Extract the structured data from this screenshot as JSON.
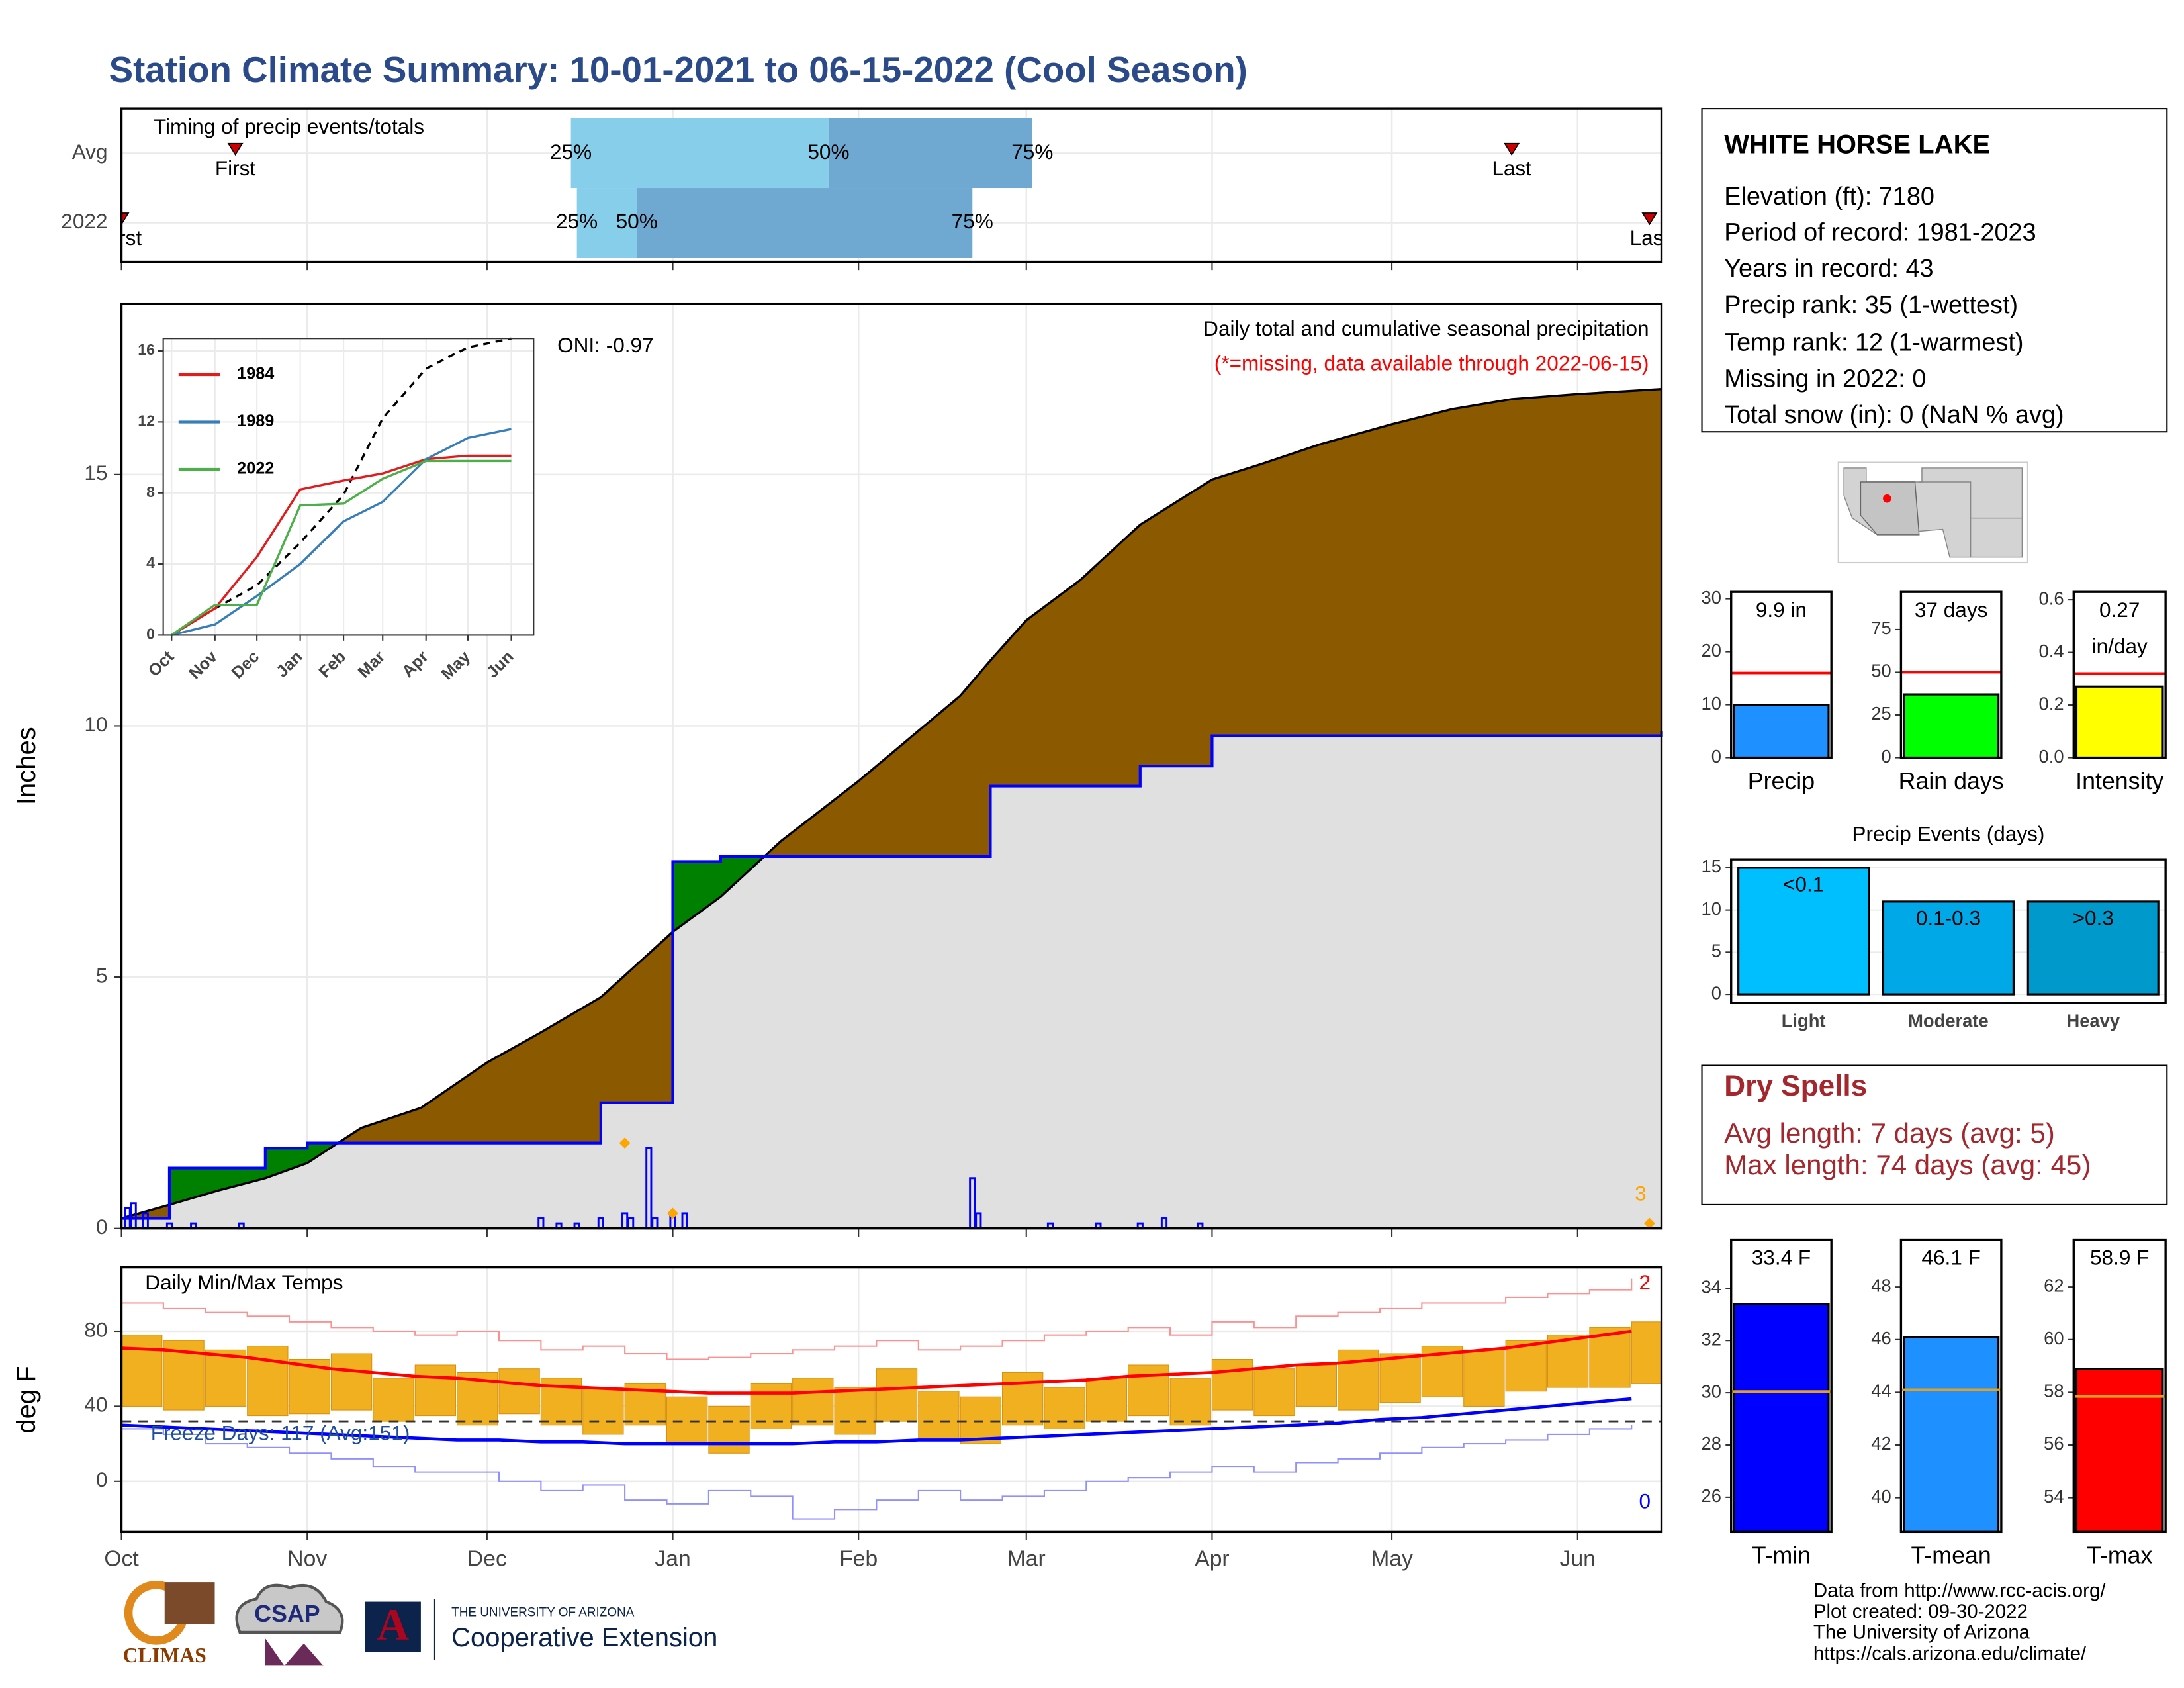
{
  "title": "Station Climate Summary: 10-01-2021 to 06-15-2022 (Cool Season)",
  "station": {
    "name": "WHITE HORSE LAKE",
    "lines": [
      "Elevation (ft): 7180",
      "Period of record: 1981-2023",
      "Years in record: 43",
      "Precip rank: 35 (1-wettest)",
      "Temp rank: 12 (1-warmest)",
      "Missing in 2022: 0",
      "Total snow (in): 0 (NaN % avg)"
    ]
  },
  "dry_spells": {
    "title": "Dry Spells",
    "lines": [
      "Avg length: 7 days (avg: 5)",
      "Max length: 74 days (avg: 45)"
    ]
  },
  "credits": [
    "Data from http://www.rcc-acis.org/",
    "Plot created: 09-30-2022",
    "The University of Arizona",
    "https://cals.arizona.edu/climate/"
  ],
  "logos": {
    "climas": "CLIMAS",
    "csap": "CSAP",
    "ua_mark": "A",
    "ua_name": "THE UNIVERSITY OF ARIZONA",
    "unit": "Cooperative Extension"
  },
  "chart_data": [
    {
      "type": "timing",
      "label": "Timing of precip events/totals",
      "categories": [
        "Avg",
        "2022"
      ],
      "markers": [
        "First",
        "25%",
        "50%",
        "75%",
        "Last"
      ],
      "values": [
        [
          19,
          75,
          118,
          152,
          232
        ],
        [
          0,
          76,
          86,
          142,
          255
        ]
      ],
      "colors": [
        "#87ceeb",
        "#6fa8d1"
      ],
      "marker_color": "#cc0000",
      "xlim": [
        0,
        257
      ],
      "xticks": [
        0,
        31,
        61,
        92,
        123,
        151,
        182,
        212,
        243
      ]
    },
    {
      "type": "cumulative",
      "title": "Daily total and cumulative seasonal precipitation",
      "subtitle": "(*=missing, data available through 2022-06-15)",
      "annotation": "ONI: -0.97",
      "count_label": "3",
      "ylabel": "Inches",
      "x": [
        0,
        8,
        16,
        24,
        31,
        40,
        50,
        61,
        70,
        80,
        92,
        100,
        110,
        123,
        130,
        140,
        145,
        151,
        160,
        170,
        182,
        190,
        200,
        212,
        222,
        232,
        243,
        257
      ],
      "series": [
        {
          "color": "#000000",
          "fill": "#8b5a00",
          "values": [
            0.2,
            0.47,
            0.75,
            1.0,
            1.3,
            2.0,
            2.4,
            3.3,
            3.9,
            4.6,
            5.9,
            6.6,
            7.7,
            8.9,
            9.6,
            10.6,
            11.3,
            12.1,
            12.9,
            14.0,
            14.9,
            15.2,
            15.6,
            16.0,
            16.3,
            16.5,
            16.6,
            16.7
          ]
        },
        {
          "color": "#0000ff",
          "fill": "#e0e0e0",
          "values": [
            0.2,
            1.2,
            1.2,
            1.6,
            1.7,
            1.7,
            1.7,
            1.7,
            1.7,
            2.5,
            7.3,
            7.4,
            7.4,
            7.4,
            7.4,
            7.4,
            8.8,
            8.8,
            8.8,
            9.2,
            9.8,
            9.8,
            9.8,
            9.8,
            9.8,
            9.8,
            9.8,
            9.9
          ]
        }
      ],
      "above_fill": "#008000",
      "daily": {
        "color": "#0000ff",
        "x": [
          1,
          2,
          4,
          8,
          12,
          20,
          70,
          73,
          76,
          80,
          84,
          85,
          88,
          89,
          92,
          94,
          142,
          143,
          155,
          163,
          170,
          174,
          180
        ],
        "values": [
          0.4,
          0.5,
          0.3,
          0.1,
          0.1,
          0.1,
          0.2,
          0.1,
          0.1,
          0.2,
          0.3,
          0.2,
          1.6,
          0.2,
          0.3,
          0.3,
          1.0,
          0.3,
          0.1,
          0.1,
          0.1,
          0.2,
          0.1
        ]
      },
      "flags": {
        "color": "#ffa500",
        "x": [
          84,
          92,
          255
        ],
        "values": [
          1.7,
          0.3,
          0.1
        ]
      },
      "xlim": [
        0,
        257
      ],
      "ylim": [
        0,
        18.4
      ],
      "yticks": [
        0,
        5,
        10,
        15
      ],
      "xticks": [
        0,
        31,
        61,
        92,
        123,
        151,
        182,
        212,
        243
      ],
      "grid": true
    },
    {
      "type": "line",
      "x": [
        0,
        31,
        61,
        92,
        123,
        151,
        182,
        212,
        243
      ],
      "series": [
        {
          "name": "1984",
          "color": "#e41a1c",
          "values": [
            0,
            1.5,
            4.4,
            8.2,
            8.7,
            9.1,
            9.9,
            10.1,
            10.1
          ]
        },
        {
          "name": "1989",
          "color": "#377eb8",
          "values": [
            0,
            0.6,
            2.2,
            4.0,
            6.4,
            7.5,
            9.9,
            11.1,
            11.6
          ]
        },
        {
          "name": "2022",
          "color": "#4daf4a",
          "values": [
            0,
            1.7,
            1.7,
            7.3,
            7.4,
            8.8,
            9.8,
            9.8,
            9.8
          ]
        }
      ],
      "average": {
        "color": "#000000",
        "values": [
          0,
          1.5,
          2.8,
          5.2,
          7.9,
          12.2,
          15.0,
          16.2,
          16.7
        ]
      },
      "xlim": [
        -6,
        259
      ],
      "ylim": [
        0,
        16.7
      ],
      "yticks": [
        0,
        4,
        8,
        12,
        16
      ],
      "xticks": [
        {
          "value": 0,
          "label": "Oct"
        },
        {
          "value": 31,
          "label": "Nov"
        },
        {
          "value": 61,
          "label": "Dec"
        },
        {
          "value": 92,
          "label": "Jan"
        },
        {
          "value": 123,
          "label": "Feb"
        },
        {
          "value": 151,
          "label": "Mar"
        },
        {
          "value": 182,
          "label": "Apr"
        },
        {
          "value": 212,
          "label": "May"
        },
        {
          "value": 243,
          "label": "Jun"
        }
      ]
    },
    {
      "type": "temperature",
      "label": "Daily Min/Max Temps",
      "annotation": "Freeze Days: 117 (Avg:151)",
      "max_count_label": "2",
      "min_count_label": "0",
      "ylabel": "deg F",
      "x": [
        0,
        7,
        14,
        21,
        28,
        35,
        42,
        49,
        56,
        63,
        70,
        77,
        84,
        91,
        98,
        105,
        112,
        119,
        126,
        133,
        140,
        147,
        154,
        161,
        168,
        175,
        182,
        189,
        196,
        203,
        210,
        217,
        224,
        231,
        238,
        245,
        252
      ],
      "obs_max": [
        78,
        75,
        70,
        72,
        65,
        68,
        55,
        62,
        58,
        60,
        55,
        50,
        52,
        45,
        40,
        52,
        55,
        50,
        60,
        48,
        45,
        58,
        50,
        55,
        62,
        55,
        65,
        60,
        62,
        70,
        68,
        72,
        70,
        75,
        78,
        82,
        85
      ],
      "obs_min": [
        40,
        38,
        40,
        35,
        36,
        38,
        32,
        35,
        30,
        36,
        30,
        25,
        30,
        20,
        15,
        28,
        30,
        25,
        32,
        22,
        20,
        30,
        28,
        32,
        35,
        30,
        38,
        35,
        40,
        38,
        42,
        45,
        40,
        48,
        50,
        50,
        52
      ],
      "normal_max": [
        71,
        70,
        68,
        66,
        63,
        60,
        58,
        56,
        55,
        53,
        51,
        50,
        49,
        48,
        47,
        47,
        47,
        48,
        49,
        50,
        51,
        52,
        53,
        54,
        56,
        57,
        58,
        60,
        62,
        63,
        65,
        67,
        69,
        71,
        74,
        77,
        80
      ],
      "normal_min": [
        30,
        29,
        28,
        27,
        26,
        25,
        24,
        23,
        22,
        22,
        21,
        21,
        20,
        20,
        20,
        20,
        20,
        21,
        21,
        22,
        22,
        23,
        24,
        25,
        26,
        27,
        28,
        29,
        30,
        31,
        33,
        34,
        36,
        38,
        40,
        42,
        44
      ],
      "extreme_max": [
        95,
        92,
        90,
        88,
        85,
        82,
        80,
        78,
        80,
        75,
        70,
        72,
        68,
        65,
        66,
        68,
        70,
        72,
        75,
        70,
        72,
        75,
        78,
        80,
        82,
        78,
        85,
        82,
        88,
        90,
        92,
        95,
        95,
        98,
        100,
        102,
        108
      ],
      "extreme_min": [
        28,
        25,
        20,
        18,
        15,
        12,
        8,
        5,
        5,
        0,
        -5,
        -2,
        -10,
        -12,
        -5,
        -8,
        -20,
        -15,
        -10,
        -5,
        -10,
        -8,
        -5,
        0,
        2,
        5,
        8,
        5,
        10,
        12,
        15,
        18,
        20,
        22,
        25,
        28,
        30
      ],
      "colors": {
        "obs": "#f0b020",
        "normal_max": "#ff0000",
        "normal_min": "#0000ff",
        "extreme_max": "#ff9090",
        "extreme_min": "#9090ff"
      },
      "freeze_line": 32,
      "xlim": [
        0,
        257
      ],
      "ylim": [
        -27,
        114
      ],
      "yticks": [
        0,
        40,
        80
      ],
      "xticks": [
        {
          "value": 0,
          "label": "Oct"
        },
        {
          "value": 31,
          "label": "Nov"
        },
        {
          "value": 61,
          "label": "Dec"
        },
        {
          "value": 92,
          "label": "Jan"
        },
        {
          "value": 123,
          "label": "Feb"
        },
        {
          "value": 151,
          "label": "Mar"
        },
        {
          "value": 182,
          "label": "Apr"
        },
        {
          "value": 212,
          "label": "May"
        },
        {
          "value": 243,
          "label": "Jun"
        }
      ],
      "grid": true
    },
    {
      "type": "gauge",
      "categories": [
        "Precip"
      ],
      "values": [
        9.9
      ],
      "value_labels": [
        "9.9 in"
      ],
      "color": "#1e90ff",
      "reference": 16,
      "reference_color": "#ff0000",
      "ylim": [
        0,
        31.3
      ],
      "yticks": [
        0,
        10,
        20,
        30
      ]
    },
    {
      "type": "gauge",
      "categories": [
        "Rain days"
      ],
      "values": [
        37
      ],
      "value_labels": [
        "37 days"
      ],
      "color": "#00ff00",
      "reference": 50,
      "reference_color": "#ff0000",
      "ylim": [
        0,
        97
      ],
      "yticks": [
        0,
        25,
        50,
        75
      ]
    },
    {
      "type": "gauge",
      "categories": [
        "Intensity"
      ],
      "values": [
        0.27
      ],
      "value_labels": [
        "0.27 in/day"
      ],
      "color": "#ffff00",
      "reference": 0.32,
      "reference_color": "#ff0000",
      "ylim": [
        0,
        0.63
      ],
      "yticks": [
        {
          "value": 0,
          "label": "0.0"
        },
        0.2,
        0.4,
        0.6
      ]
    },
    {
      "type": "events",
      "title": "Precip Events (days)",
      "categories": [
        "Light",
        "Moderate",
        "Heavy"
      ],
      "bin_labels": [
        "<0.1",
        "0.1-0.3",
        ">0.3"
      ],
      "values": [
        15,
        11,
        11
      ],
      "colors": [
        "#00bfff",
        "#00a8e8",
        "#0099cc"
      ],
      "ylim": [
        -1,
        16
      ],
      "yticks": [
        0,
        5,
        10,
        15
      ],
      "grid": true
    },
    {
      "type": "gauge",
      "categories": [
        "T-min"
      ],
      "values": [
        33.4
      ],
      "value_labels": [
        "33.4 F"
      ],
      "color": "#0000ff",
      "reference": 30.05,
      "reference_color": "#e0a020",
      "ylim": [
        24.67,
        35.87
      ],
      "yticks": [
        26,
        28,
        30,
        32,
        34
      ]
    },
    {
      "type": "gauge",
      "categories": [
        "T-mean"
      ],
      "values": [
        46.1
      ],
      "value_labels": [
        "46.1 F"
      ],
      "color": "#1e90ff",
      "reference": 44.1,
      "reference_color": "#e0a020",
      "ylim": [
        38.7,
        49.8
      ],
      "yticks": [
        40,
        42,
        44,
        46,
        48
      ]
    },
    {
      "type": "gauge",
      "categories": [
        "T-max"
      ],
      "values": [
        58.9
      ],
      "value_labels": [
        "58.9 F"
      ],
      "color": "#ff0000",
      "reference": 57.84,
      "reference_color": "#e0a020",
      "ylim": [
        52.7,
        63.8
      ],
      "yticks": [
        54,
        56,
        58,
        60,
        62
      ]
    }
  ]
}
